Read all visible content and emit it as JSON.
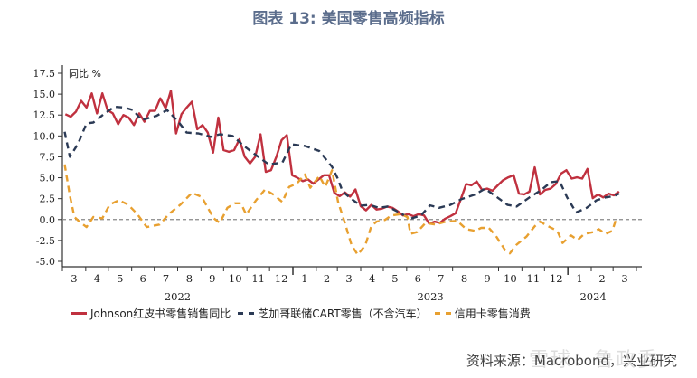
{
  "title": "图表 13: 美国零售高频指标",
  "source": "资料来源：Macrobond，兴业研究",
  "watermark": "雪球：鲁政委",
  "chart_data": {
    "type": "line",
    "ylabel": "同比 %",
    "ylim": [
      -5.0,
      17.5
    ],
    "yticks": [
      "17.5",
      "15.0",
      "12.5",
      "10.0",
      "7.5",
      "5.0",
      "2.5",
      "0.0",
      "-2.5",
      "-5.0"
    ],
    "xlim": [
      "2022-03-01",
      "2024-04-01"
    ],
    "month_ticks": [
      {
        "label": "3",
        "start": "2022-03-01"
      },
      {
        "label": "4",
        "start": "2022-04-01"
      },
      {
        "label": "5",
        "start": "2022-05-01"
      },
      {
        "label": "6",
        "start": "2022-06-01"
      },
      {
        "label": "7",
        "start": "2022-07-01"
      },
      {
        "label": "8",
        "start": "2022-08-01"
      },
      {
        "label": "9",
        "start": "2022-09-01"
      },
      {
        "label": "10",
        "start": "2022-10-01"
      },
      {
        "label": "11",
        "start": "2022-11-01"
      },
      {
        "label": "12",
        "start": "2022-12-01"
      },
      {
        "label": "1",
        "start": "2023-01-01"
      },
      {
        "label": "2",
        "start": "2023-02-01"
      },
      {
        "label": "3",
        "start": "2023-03-01"
      },
      {
        "label": "4",
        "start": "2023-04-01"
      },
      {
        "label": "5",
        "start": "2023-05-01"
      },
      {
        "label": "6",
        "start": "2023-06-01"
      },
      {
        "label": "7",
        "start": "2023-07-01"
      },
      {
        "label": "8",
        "start": "2023-08-01"
      },
      {
        "label": "9",
        "start": "2023-09-01"
      },
      {
        "label": "10",
        "start": "2023-10-01"
      },
      {
        "label": "11",
        "start": "2023-11-01"
      },
      {
        "label": "12",
        "start": "2023-12-01"
      },
      {
        "label": "1",
        "start": "2024-01-01"
      },
      {
        "label": "2",
        "start": "2024-02-01"
      },
      {
        "label": "3",
        "start": "2024-03-01"
      }
    ],
    "year_labels": [
      {
        "label": "2022",
        "start": "2022-03-01",
        "end": "2023-01-01"
      },
      {
        "label": "2023",
        "start": "2023-01-01",
        "end": "2024-01-01"
      },
      {
        "label": "2024",
        "start": "2024-01-01",
        "end": "2024-04-01"
      }
    ],
    "zero_line": true,
    "grid": false,
    "legend_position": "bottom",
    "series": [
      {
        "name": "Johnson红皮书零售销售同比",
        "color": "#c0313f",
        "style": "solid",
        "points": [
          [
            "2022-03-05",
            12.6
          ],
          [
            "2022-03-12",
            12.3
          ],
          [
            "2022-03-19",
            12.9
          ],
          [
            "2022-03-26",
            14.2
          ],
          [
            "2022-04-02",
            13.4
          ],
          [
            "2022-04-09",
            15.1
          ],
          [
            "2022-04-16",
            12.7
          ],
          [
            "2022-04-23",
            15.1
          ],
          [
            "2022-04-30",
            13.1
          ],
          [
            "2022-05-07",
            12.7
          ],
          [
            "2022-05-14",
            11.4
          ],
          [
            "2022-05-21",
            12.5
          ],
          [
            "2022-05-28",
            12.2
          ],
          [
            "2022-06-04",
            11.3
          ],
          [
            "2022-06-11",
            12.7
          ],
          [
            "2022-06-18",
            11.7
          ],
          [
            "2022-06-25",
            13.0
          ],
          [
            "2022-07-02",
            13.0
          ],
          [
            "2022-07-09",
            14.5
          ],
          [
            "2022-07-16",
            13.3
          ],
          [
            "2022-07-23",
            15.4
          ],
          [
            "2022-07-30",
            10.3
          ],
          [
            "2022-08-06",
            12.6
          ],
          [
            "2022-08-13",
            13.4
          ],
          [
            "2022-08-20",
            14.1
          ],
          [
            "2022-08-27",
            10.8
          ],
          [
            "2022-09-03",
            11.3
          ],
          [
            "2022-09-10",
            10.4
          ],
          [
            "2022-09-17",
            8.0
          ],
          [
            "2022-09-24",
            12.2
          ],
          [
            "2022-10-01",
            8.3
          ],
          [
            "2022-10-08",
            8.1
          ],
          [
            "2022-10-15",
            8.3
          ],
          [
            "2022-10-22",
            9.6
          ],
          [
            "2022-10-29",
            7.5
          ],
          [
            "2022-11-05",
            6.7
          ],
          [
            "2022-11-12",
            7.5
          ],
          [
            "2022-11-19",
            10.2
          ],
          [
            "2022-11-26",
            5.7
          ],
          [
            "2022-12-03",
            5.9
          ],
          [
            "2022-12-10",
            7.5
          ],
          [
            "2022-12-17",
            9.5
          ],
          [
            "2022-12-24",
            10.1
          ],
          [
            "2022-12-31",
            5.3
          ],
          [
            "2023-01-07",
            5.0
          ],
          [
            "2023-01-14",
            4.6
          ],
          [
            "2023-01-21",
            4.8
          ],
          [
            "2023-01-28",
            4.3
          ],
          [
            "2023-02-04",
            4.8
          ],
          [
            "2023-02-11",
            5.3
          ],
          [
            "2023-02-18",
            5.3
          ],
          [
            "2023-02-25",
            3.2
          ],
          [
            "2023-03-04",
            2.8
          ],
          [
            "2023-03-11",
            3.25
          ],
          [
            "2023-03-18",
            2.75
          ],
          [
            "2023-03-25",
            3.6
          ],
          [
            "2023-04-01",
            1.6
          ],
          [
            "2023-04-08",
            1.1
          ],
          [
            "2023-04-15",
            1.75
          ],
          [
            "2023-04-22",
            1.2
          ],
          [
            "2023-04-29",
            1.3
          ],
          [
            "2023-05-06",
            1.55
          ],
          [
            "2023-05-13",
            1.4
          ],
          [
            "2023-05-20",
            1.0
          ],
          [
            "2023-05-27",
            0.5
          ],
          [
            "2023-06-03",
            0.65
          ],
          [
            "2023-06-10",
            0.4
          ],
          [
            "2023-06-17",
            0.65
          ],
          [
            "2023-06-24",
            0.5
          ],
          [
            "2023-07-01",
            -0.5
          ],
          [
            "2023-07-08",
            -0.25
          ],
          [
            "2023-07-15",
            -0.4
          ],
          [
            "2023-07-22",
            0.1
          ],
          [
            "2023-07-29",
            0.4
          ],
          [
            "2023-08-05",
            0.75
          ],
          [
            "2023-08-12",
            2.45
          ],
          [
            "2023-08-19",
            4.25
          ],
          [
            "2023-08-26",
            4.1
          ],
          [
            "2023-09-02",
            4.55
          ],
          [
            "2023-09-09",
            3.55
          ],
          [
            "2023-09-16",
            3.7
          ],
          [
            "2023-09-23",
            3.45
          ],
          [
            "2023-09-30",
            4.1
          ],
          [
            "2023-10-07",
            4.7
          ],
          [
            "2023-10-14",
            5.05
          ],
          [
            "2023-10-21",
            5.3
          ],
          [
            "2023-10-28",
            3.1
          ],
          [
            "2023-11-04",
            3.0
          ],
          [
            "2023-11-11",
            3.35
          ],
          [
            "2023-11-18",
            6.25
          ],
          [
            "2023-11-25",
            3.0
          ],
          [
            "2023-12-02",
            3.55
          ],
          [
            "2023-12-09",
            3.7
          ],
          [
            "2023-12-16",
            4.25
          ],
          [
            "2023-12-23",
            5.5
          ],
          [
            "2023-12-30",
            5.9
          ],
          [
            "2024-01-06",
            4.9
          ],
          [
            "2024-01-13",
            5.05
          ],
          [
            "2024-01-20",
            4.9
          ],
          [
            "2024-01-27",
            6.05
          ],
          [
            "2024-02-03",
            2.55
          ],
          [
            "2024-02-10",
            3.0
          ],
          [
            "2024-02-17",
            2.65
          ],
          [
            "2024-02-24",
            3.1
          ],
          [
            "2024-03-02",
            2.9
          ],
          [
            "2024-03-09",
            3.35
          ]
        ]
      },
      {
        "name": "芝加哥联储CART零售（不含汽车）",
        "color": "#2b3a55",
        "style": "dashed",
        "points": [
          [
            "2022-03-04",
            10.5
          ],
          [
            "2022-03-11",
            7.5
          ],
          [
            "2022-03-22",
            9.1
          ],
          [
            "2022-04-02",
            11.5
          ],
          [
            "2022-04-11",
            11.6
          ],
          [
            "2022-04-25",
            12.6
          ],
          [
            "2022-05-09",
            13.5
          ],
          [
            "2022-05-22",
            13.4
          ],
          [
            "2022-06-03",
            13.1
          ],
          [
            "2022-06-14",
            11.9
          ],
          [
            "2022-07-04",
            12.4
          ],
          [
            "2022-07-18",
            13.1
          ],
          [
            "2022-08-02",
            11.7
          ],
          [
            "2022-08-13",
            10.4
          ],
          [
            "2022-08-29",
            10.3
          ],
          [
            "2022-09-14",
            9.9
          ],
          [
            "2022-09-26",
            10.2
          ],
          [
            "2022-10-13",
            10.0
          ],
          [
            "2022-10-28",
            8.8
          ],
          [
            "2022-11-13",
            7.7
          ],
          [
            "2022-11-30",
            6.6
          ],
          [
            "2022-12-18",
            6.8
          ],
          [
            "2022-12-30",
            9.0
          ],
          [
            "2023-01-17",
            8.8
          ],
          [
            "2023-02-05",
            8.2
          ],
          [
            "2023-02-22",
            6.3
          ],
          [
            "2023-03-01",
            5.0
          ],
          [
            "2023-03-08",
            3.35
          ],
          [
            "2023-03-20",
            2.45
          ],
          [
            "2023-04-01",
            1.65
          ],
          [
            "2023-04-13",
            1.75
          ],
          [
            "2023-04-25",
            1.4
          ],
          [
            "2023-05-07",
            1.55
          ],
          [
            "2023-05-22",
            0.85
          ],
          [
            "2023-06-06",
            0.1
          ],
          [
            "2023-06-20",
            0.5
          ],
          [
            "2023-07-02",
            1.7
          ],
          [
            "2023-07-14",
            1.4
          ],
          [
            "2023-07-29",
            1.75
          ],
          [
            "2023-08-13",
            2.45
          ],
          [
            "2023-08-31",
            3.0
          ],
          [
            "2023-09-13",
            3.7
          ],
          [
            "2023-09-27",
            2.8
          ],
          [
            "2023-10-13",
            1.75
          ],
          [
            "2023-10-25",
            1.55
          ],
          [
            "2023-11-11",
            2.65
          ],
          [
            "2023-11-27",
            3.55
          ],
          [
            "2023-12-09",
            4.45
          ],
          [
            "2023-12-21",
            4.6
          ],
          [
            "2023-12-31",
            2.65
          ],
          [
            "2024-01-12",
            0.85
          ],
          [
            "2024-01-26",
            1.4
          ],
          [
            "2024-02-08",
            2.3
          ],
          [
            "2024-02-20",
            2.65
          ],
          [
            "2024-03-02",
            2.8
          ],
          [
            "2024-03-09",
            3.1
          ]
        ]
      },
      {
        "name": "信用卡零售消费",
        "color": "#e8a030",
        "style": "dashed",
        "points": [
          [
            "2022-03-04",
            6.6
          ],
          [
            "2022-03-11",
            2.85
          ],
          [
            "2022-03-17",
            0.3
          ],
          [
            "2022-03-23",
            -0.2
          ],
          [
            "2022-04-02",
            -0.9
          ],
          [
            "2022-04-11",
            0.3
          ],
          [
            "2022-04-23",
            0.15
          ],
          [
            "2022-05-03",
            1.8
          ],
          [
            "2022-05-15",
            2.3
          ],
          [
            "2022-05-27",
            1.8
          ],
          [
            "2022-06-08",
            0.7
          ],
          [
            "2022-06-21",
            -0.9
          ],
          [
            "2022-07-08",
            -0.6
          ],
          [
            "2022-07-21",
            0.7
          ],
          [
            "2022-08-05",
            1.8
          ],
          [
            "2022-08-20",
            3.2
          ],
          [
            "2022-09-02",
            2.7
          ],
          [
            "2022-09-10",
            1.4
          ],
          [
            "2022-09-18",
            0.15
          ],
          [
            "2022-09-26",
            -0.4
          ],
          [
            "2022-10-06",
            1.4
          ],
          [
            "2022-10-16",
            1.95
          ],
          [
            "2022-10-24",
            1.95
          ],
          [
            "2022-10-31",
            0.6
          ],
          [
            "2022-11-13",
            2.3
          ],
          [
            "2022-11-25",
            3.6
          ],
          [
            "2022-12-06",
            3.0
          ],
          [
            "2022-12-18",
            2.1
          ],
          [
            "2022-12-27",
            3.9
          ],
          [
            "2023-01-06",
            4.3
          ],
          [
            "2023-01-17",
            5.4
          ],
          [
            "2023-01-24",
            3.8
          ],
          [
            "2023-02-05",
            5.2
          ],
          [
            "2023-02-13",
            3.9
          ],
          [
            "2023-02-22",
            5.9
          ],
          [
            "2023-03-02",
            2.1
          ],
          [
            "2023-03-11",
            -0.4
          ],
          [
            "2023-03-20",
            -3.1
          ],
          [
            "2023-03-28",
            -4.2
          ],
          [
            "2023-04-07",
            -3.1
          ],
          [
            "2023-04-15",
            -0.8
          ],
          [
            "2023-04-22",
            -0.25
          ],
          [
            "2023-05-03",
            -0.05
          ],
          [
            "2023-05-12",
            0.5
          ],
          [
            "2023-05-24",
            0.65
          ],
          [
            "2023-06-02",
            0.3
          ],
          [
            "2023-06-06",
            -1.7
          ],
          [
            "2023-06-15",
            -1.5
          ],
          [
            "2023-06-26",
            -0.4
          ],
          [
            "2023-07-09",
            -0.6
          ],
          [
            "2023-07-23",
            -0.25
          ],
          [
            "2023-08-07",
            -0.15
          ],
          [
            "2023-08-19",
            -1.15
          ],
          [
            "2023-08-31",
            -1.35
          ],
          [
            "2023-09-08",
            -1.0
          ],
          [
            "2023-09-18",
            -1.0
          ],
          [
            "2023-09-27",
            -1.9
          ],
          [
            "2023-10-10",
            -3.7
          ],
          [
            "2023-10-16",
            -4.05
          ],
          [
            "2023-10-25",
            -3.0
          ],
          [
            "2023-11-07",
            -2.05
          ],
          [
            "2023-11-18",
            -0.8
          ],
          [
            "2023-11-25",
            -0.25
          ],
          [
            "2023-12-06",
            -0.8
          ],
          [
            "2023-12-18",
            -1.35
          ],
          [
            "2023-12-25",
            -2.8
          ],
          [
            "2024-01-05",
            -1.9
          ],
          [
            "2024-01-14",
            -2.45
          ],
          [
            "2024-01-23",
            -1.7
          ],
          [
            "2024-02-04",
            -1.5
          ],
          [
            "2024-02-11",
            -1.15
          ],
          [
            "2024-02-20",
            -1.7
          ],
          [
            "2024-02-29",
            -1.35
          ],
          [
            "2024-03-06",
            0.3
          ]
        ]
      }
    ]
  }
}
